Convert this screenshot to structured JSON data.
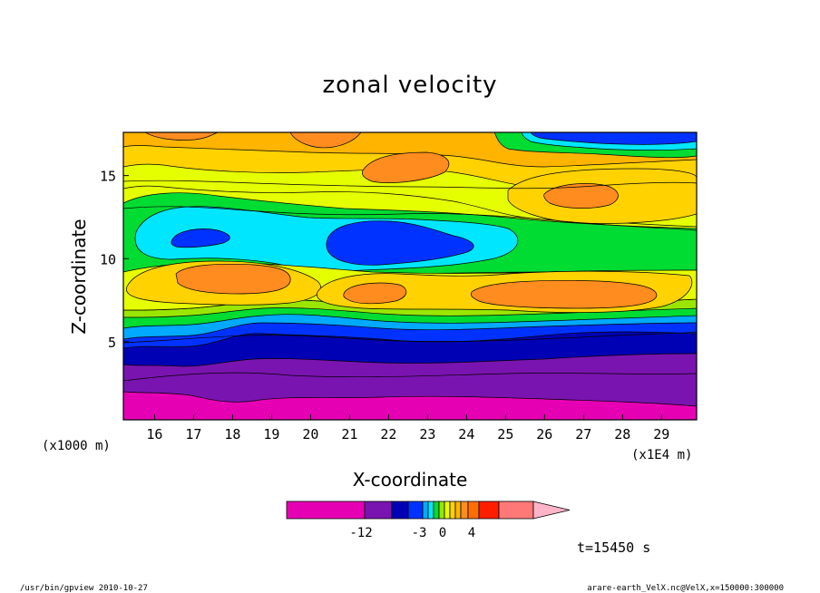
{
  "chart_data": {
    "type": "heatmap",
    "subtype": "filled-contour",
    "title": "zonal velocity",
    "xlabel": "X-coordinate",
    "ylabel": "Z-coordinate",
    "x_unit_note": "(x1E4 m)",
    "y_unit_note": "(x1000 m)",
    "xlim": [
      15.2,
      29.9
    ],
    "ylim": [
      0.3,
      17.6
    ],
    "x_ticks": [
      "16",
      "17",
      "18",
      "19",
      "20",
      "21",
      "22",
      "23",
      "24",
      "25",
      "26",
      "27",
      "28",
      "29"
    ],
    "y_ticks": [
      "5",
      "10",
      "15"
    ],
    "time_label": "t=15450 s",
    "colorbar": {
      "colors": [
        "#e600b4",
        "#7a14b0",
        "#0000b4",
        "#0032ff",
        "#00aaff",
        "#00e6ff",
        "#00dc32",
        "#9ae600",
        "#e6ff00",
        "#ffd200",
        "#ffb400",
        "#ff8c1e",
        "#ff6e00",
        "#ff1e00",
        "#ff7878",
        "#ffb4c8"
      ],
      "labels": [
        "-12",
        "-3",
        "0",
        "4"
      ]
    },
    "grid": false
  },
  "footer": {
    "left": "/usr/bin/gpview   2010-10-27",
    "right": "arare-earth_VelX.nc@VelX,x=150000:300000"
  }
}
